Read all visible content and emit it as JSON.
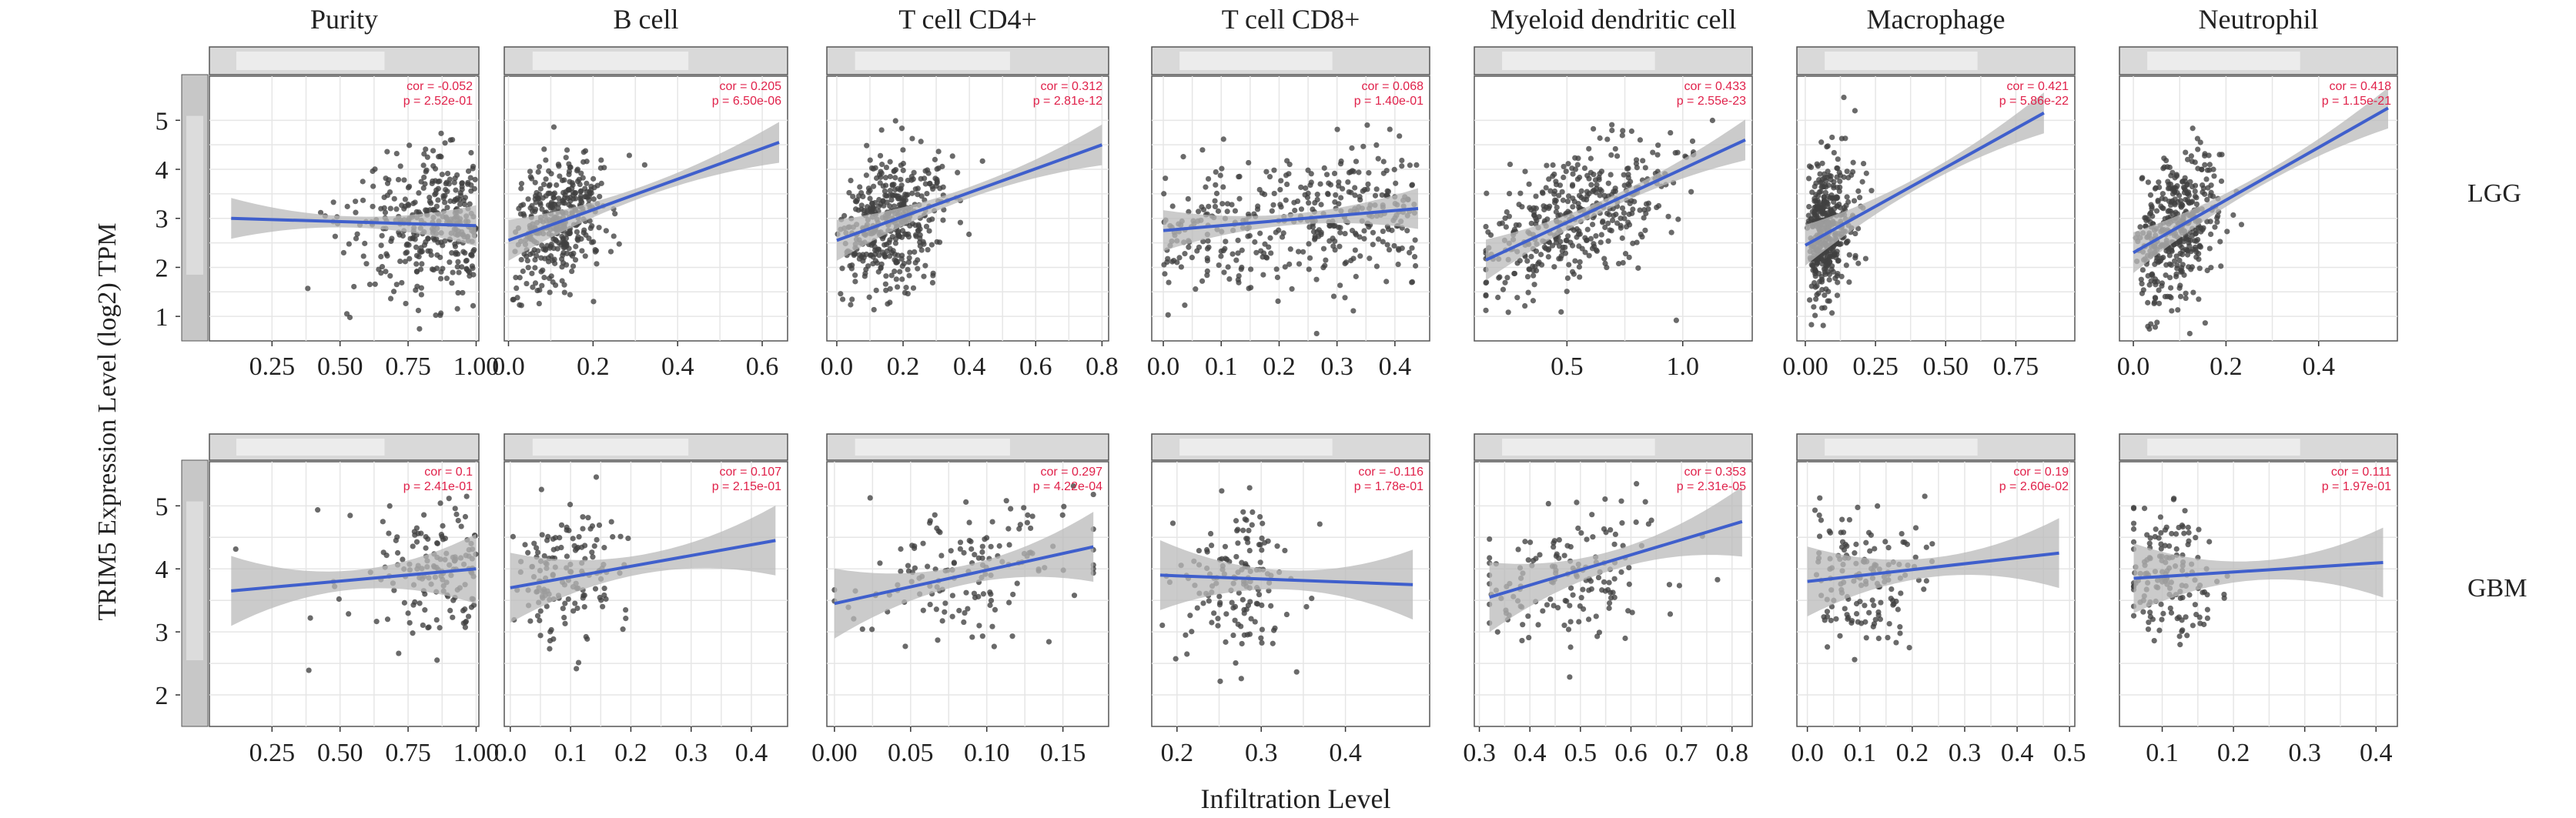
{
  "figure": {
    "ylabel": "TRIM5 Expression Level (log2) TPM",
    "xlabel": "Infiltration Level",
    "row_labels": [
      "LGG",
      "GBM"
    ],
    "column_titles": [
      "Purity",
      "B cell",
      "T cell CD4+",
      "T cell CD8+",
      "Myeloid dendritic cell",
      "Macrophage",
      "Neutrophil"
    ]
  },
  "colors": {
    "point": "#404040",
    "fit_line": "#3f5fcc",
    "ci_band": "#b9b9b9",
    "annotation": "#e0214a",
    "grid": "#e6e6e6",
    "panel_border": "#555555",
    "strip_bg": "#d9d9d9"
  },
  "chart_data": [
    {
      "type": "scatter",
      "row": "LGG",
      "title": "Purity",
      "ylabel": "TRIM5 Expression Level (log2) TPM",
      "xlim": [
        0.02,
        1.01
      ],
      "ylim": [
        0.5,
        5.9
      ],
      "xticks": [
        0.25,
        0.5,
        0.75,
        1.0
      ],
      "xtick_labels": [
        "0.25",
        "0.50",
        "0.75",
        "1.00"
      ],
      "yticks": [
        1,
        2,
        3,
        4,
        5
      ],
      "ytick_labels": [
        "1",
        "2",
        "3",
        "4",
        "5"
      ],
      "fit": {
        "x": [
          0.1,
          1.0
        ],
        "y": [
          3.0,
          2.85
        ]
      },
      "annotation": {
        "cor": "cor = -0.052",
        "p": "p = 2.52e-01"
      },
      "points": {
        "n": 360,
        "x_mode": "purity",
        "x_min": 0.1,
        "x_max": 1.0,
        "y_mean": 2.9,
        "y_sd": 0.8
      }
    },
    {
      "type": "scatter",
      "row": "LGG",
      "title": "B cell",
      "xlim": [
        -0.01,
        0.66
      ],
      "ylim": [
        0.5,
        5.9
      ],
      "xticks": [
        0,
        0.2,
        0.4,
        0.6
      ],
      "xtick_labels": [
        "0.0",
        "0.2",
        "0.4",
        "0.6"
      ],
      "yticks": [
        1,
        2,
        3,
        4,
        5
      ],
      "fit": {
        "x": [
          0.0,
          0.64
        ],
        "y": [
          2.55,
          4.55
        ]
      },
      "annotation": {
        "cor": "cor = 0.205",
        "p": "p = 6.50e-06"
      },
      "points": {
        "n": 380,
        "x_mode": "skew",
        "x_min": 0.0,
        "x_max": 0.63,
        "x_mean": 0.11,
        "x_sd": 0.06,
        "y_mean": 2.9,
        "y_sd": 0.75
      }
    },
    {
      "type": "scatter",
      "row": "LGG",
      "title": "T cell CD4+",
      "xlim": [
        -0.03,
        0.82
      ],
      "ylim": [
        0.5,
        5.9
      ],
      "xticks": [
        0,
        0.2,
        0.4,
        0.6,
        0.8
      ],
      "xtick_labels": [
        "0.0",
        "0.2",
        "0.4",
        "0.6",
        "0.8"
      ],
      "yticks": [
        1,
        2,
        3,
        4,
        5
      ],
      "fit": {
        "x": [
          0.0,
          0.8
        ],
        "y": [
          2.55,
          4.5
        ]
      },
      "annotation": {
        "cor": "cor = 0.312",
        "p": "p = 2.81e-12"
      },
      "points": {
        "n": 420,
        "x_mode": "skew",
        "x_min": 0.0,
        "x_max": 0.8,
        "x_mean": 0.14,
        "x_sd": 0.1,
        "y_mean": 2.9,
        "y_sd": 0.8
      }
    },
    {
      "type": "scatter",
      "row": "LGG",
      "title": "T cell CD8+",
      "xlim": [
        -0.02,
        0.46
      ],
      "ylim": [
        0.5,
        5.9
      ],
      "xticks": [
        0,
        0.1,
        0.2,
        0.3,
        0.4
      ],
      "xtick_labels": [
        "0.0",
        "0.1",
        "0.2",
        "0.3",
        "0.4"
      ],
      "yticks": [
        1,
        2,
        3,
        4,
        5
      ],
      "fit": {
        "x": [
          0.0,
          0.44
        ],
        "y": [
          2.75,
          3.2
        ]
      },
      "annotation": {
        "cor": "cor = 0.068",
        "p": "p = 1.40e-01"
      },
      "points": {
        "n": 400,
        "x_mode": "uniform",
        "x_min": 0.0,
        "x_max": 0.44,
        "y_mean": 2.9,
        "y_sd": 0.85
      }
    },
    {
      "type": "scatter",
      "row": "LGG",
      "title": "Myeloid dendritic cell",
      "xlim": [
        0.1,
        1.3
      ],
      "ylim": [
        0.5,
        5.9
      ],
      "xticks": [
        0.5,
        1.0
      ],
      "xtick_labels": [
        "0.5",
        "1.0"
      ],
      "yticks": [
        1,
        2,
        3,
        4,
        5
      ],
      "fit": {
        "x": [
          0.15,
          1.27
        ],
        "y": [
          2.15,
          4.6
        ]
      },
      "annotation": {
        "cor": "cor = 0.433",
        "p": "p = 2.55e-23"
      },
      "points": {
        "n": 420,
        "x_mode": "normal",
        "x_min": 0.15,
        "x_max": 1.27,
        "x_mean": 0.55,
        "x_sd": 0.22,
        "y_mean": 2.9,
        "y_sd": 0.8
      }
    },
    {
      "type": "scatter",
      "row": "LGG",
      "title": "Macrophage",
      "xlim": [
        -0.03,
        0.96
      ],
      "ylim": [
        0.5,
        5.9
      ],
      "xticks": [
        0,
        0.25,
        0.5,
        0.75
      ],
      "xtick_labels": [
        "0.00",
        "0.25",
        "0.50",
        "0.75"
      ],
      "yticks": [
        1,
        2,
        3,
        4,
        5
      ],
      "fit": {
        "x": [
          0.0,
          0.85
        ],
        "y": [
          2.45,
          5.15
        ]
      },
      "annotation": {
        "cor": "cor = 0.421",
        "p": "p = 5.86e-22"
      },
      "points": {
        "n": 420,
        "x_mode": "skew",
        "x_min": 0.0,
        "x_max": 0.9,
        "x_mean": 0.04,
        "x_sd": 0.07,
        "y_mean": 2.8,
        "y_sd": 0.8
      }
    },
    {
      "type": "scatter",
      "row": "LGG",
      "title": "Neutrophil",
      "xlim": [
        -0.03,
        0.57
      ],
      "ylim": [
        0.5,
        5.9
      ],
      "xticks": [
        0,
        0.2,
        0.4
      ],
      "xtick_labels": [
        "0.0",
        "0.2",
        "0.4"
      ],
      "yticks": [
        1,
        2,
        3,
        4,
        5
      ],
      "fit": {
        "x": [
          0.0,
          0.55
        ],
        "y": [
          2.3,
          5.25
        ]
      },
      "annotation": {
        "cor": "cor = 0.418",
        "p": "p = 1.15e-21"
      },
      "points": {
        "n": 420,
        "x_mode": "skew",
        "x_min": 0.0,
        "x_max": 0.55,
        "x_mean": 0.09,
        "x_sd": 0.045,
        "y_mean": 2.85,
        "y_sd": 0.8
      }
    },
    {
      "type": "scatter",
      "row": "GBM",
      "title": "Purity",
      "xlim": [
        0.02,
        1.01
      ],
      "ylim": [
        1.5,
        5.7
      ],
      "xticks": [
        0.25,
        0.5,
        0.75,
        1.0
      ],
      "xtick_labels": [
        "0.25",
        "0.50",
        "0.75",
        "1.00"
      ],
      "yticks": [
        2,
        3,
        4,
        5
      ],
      "ytick_labels": [
        "2",
        "3",
        "4",
        "5"
      ],
      "fit": {
        "x": [
          0.1,
          1.0
        ],
        "y": [
          3.65,
          4.0
        ]
      },
      "annotation": {
        "cor": "cor = 0.1",
        "p": "p = 2.41e-01"
      },
      "points": {
        "n": 150,
        "x_mode": "purity",
        "x_min": 0.1,
        "x_max": 1.0,
        "y_mean": 3.9,
        "y_sd": 0.65
      }
    },
    {
      "type": "scatter",
      "row": "GBM",
      "title": "B cell",
      "xlim": [
        -0.01,
        0.46
      ],
      "ylim": [
        1.5,
        5.7
      ],
      "xticks": [
        0,
        0.1,
        0.2,
        0.3,
        0.4
      ],
      "xtick_labels": [
        "0.0",
        "0.1",
        "0.2",
        "0.3",
        "0.4"
      ],
      "yticks": [
        2,
        3,
        4,
        5
      ],
      "fit": {
        "x": [
          0.0,
          0.44
        ],
        "y": [
          3.7,
          4.45
        ]
      },
      "annotation": {
        "cor": "cor = 0.107",
        "p": "p = 2.15e-01"
      },
      "points": {
        "n": 150,
        "x_mode": "skew",
        "x_min": 0.0,
        "x_max": 0.44,
        "x_mean": 0.08,
        "x_sd": 0.05,
        "y_mean": 3.9,
        "y_sd": 0.7
      }
    },
    {
      "type": "scatter",
      "row": "GBM",
      "title": "T cell CD4+",
      "xlim": [
        -0.005,
        0.18
      ],
      "ylim": [
        1.5,
        5.7
      ],
      "xticks": [
        0,
        0.05,
        0.1,
        0.15
      ],
      "xtick_labels": [
        "0.00",
        "0.05",
        "0.10",
        "0.15"
      ],
      "yticks": [
        2,
        3,
        4,
        5
      ],
      "fit": {
        "x": [
          0.0,
          0.17
        ],
        "y": [
          3.45,
          4.35
        ]
      },
      "annotation": {
        "cor": "cor = 0.297",
        "p": "p = 4.22e-04"
      },
      "points": {
        "n": 150,
        "x_mode": "normal",
        "x_min": 0.0,
        "x_max": 0.17,
        "x_mean": 0.09,
        "x_sd": 0.035,
        "y_mean": 3.85,
        "y_sd": 0.65
      }
    },
    {
      "type": "scatter",
      "row": "GBM",
      "title": "T cell CD8+",
      "xlim": [
        0.17,
        0.5
      ],
      "ylim": [
        1.5,
        5.7
      ],
      "xticks": [
        0.2,
        0.3,
        0.4
      ],
      "xtick_labels": [
        "0.2",
        "0.3",
        "0.4"
      ],
      "yticks": [
        2,
        3,
        4,
        5
      ],
      "fit": {
        "x": [
          0.18,
          0.48
        ],
        "y": [
          3.9,
          3.75
        ]
      },
      "annotation": {
        "cor": "cor = -0.116",
        "p": "p = 1.78e-01"
      },
      "points": {
        "n": 150,
        "x_mode": "normal",
        "x_min": 0.18,
        "x_max": 0.48,
        "x_mean": 0.27,
        "x_sd": 0.035,
        "y_mean": 3.85,
        "y_sd": 0.7
      }
    },
    {
      "type": "scatter",
      "row": "GBM",
      "title": "Myeloid dendritic cell",
      "xlim": [
        0.29,
        0.84
      ],
      "ylim": [
        1.5,
        5.7
      ],
      "xticks": [
        0.3,
        0.4,
        0.5,
        0.6,
        0.7,
        0.8
      ],
      "xtick_labels": [
        "0.3",
        "0.4",
        "0.5",
        "0.6",
        "0.7",
        "0.8"
      ],
      "yticks": [
        2,
        3,
        4,
        5
      ],
      "fit": {
        "x": [
          0.32,
          0.82
        ],
        "y": [
          3.55,
          4.75
        ]
      },
      "annotation": {
        "cor": "cor = 0.353",
        "p": "p = 2.31e-05"
      },
      "points": {
        "n": 150,
        "x_mode": "normal",
        "x_min": 0.32,
        "x_max": 0.82,
        "x_mean": 0.47,
        "x_sd": 0.09,
        "y_mean": 3.85,
        "y_sd": 0.65
      }
    },
    {
      "type": "scatter",
      "row": "GBM",
      "title": "Macrophage",
      "xlim": [
        -0.02,
        0.51
      ],
      "ylim": [
        1.5,
        5.7
      ],
      "xticks": [
        0,
        0.1,
        0.2,
        0.3,
        0.4,
        0.5
      ],
      "xtick_labels": [
        "0.0",
        "0.1",
        "0.2",
        "0.3",
        "0.4",
        "0.5"
      ],
      "yticks": [
        2,
        3,
        4,
        5
      ],
      "fit": {
        "x": [
          0.0,
          0.48
        ],
        "y": [
          3.8,
          4.25
        ]
      },
      "annotation": {
        "cor": "cor = 0.19",
        "p": "p = 2.60e-02"
      },
      "points": {
        "n": 150,
        "x_mode": "skew",
        "x_min": 0.0,
        "x_max": 0.48,
        "x_mean": 0.08,
        "x_sd": 0.07,
        "y_mean": 3.9,
        "y_sd": 0.65
      }
    },
    {
      "type": "scatter",
      "row": "GBM",
      "title": "Neutrophil",
      "xlim": [
        0.04,
        0.43
      ],
      "ylim": [
        1.5,
        5.7
      ],
      "xticks": [
        0.1,
        0.2,
        0.3,
        0.4
      ],
      "xtick_labels": [
        "0.1",
        "0.2",
        "0.3",
        "0.4"
      ],
      "yticks": [
        2,
        3,
        4,
        5
      ],
      "fit": {
        "x": [
          0.06,
          0.41
        ],
        "y": [
          3.85,
          4.1
        ]
      },
      "annotation": {
        "cor": "cor = 0.111",
        "p": "p = 1.97e-01"
      },
      "points": {
        "n": 150,
        "x_mode": "normal",
        "x_min": 0.06,
        "x_max": 0.41,
        "x_mean": 0.11,
        "x_sd": 0.035,
        "y_mean": 3.9,
        "y_sd": 0.65
      }
    }
  ]
}
